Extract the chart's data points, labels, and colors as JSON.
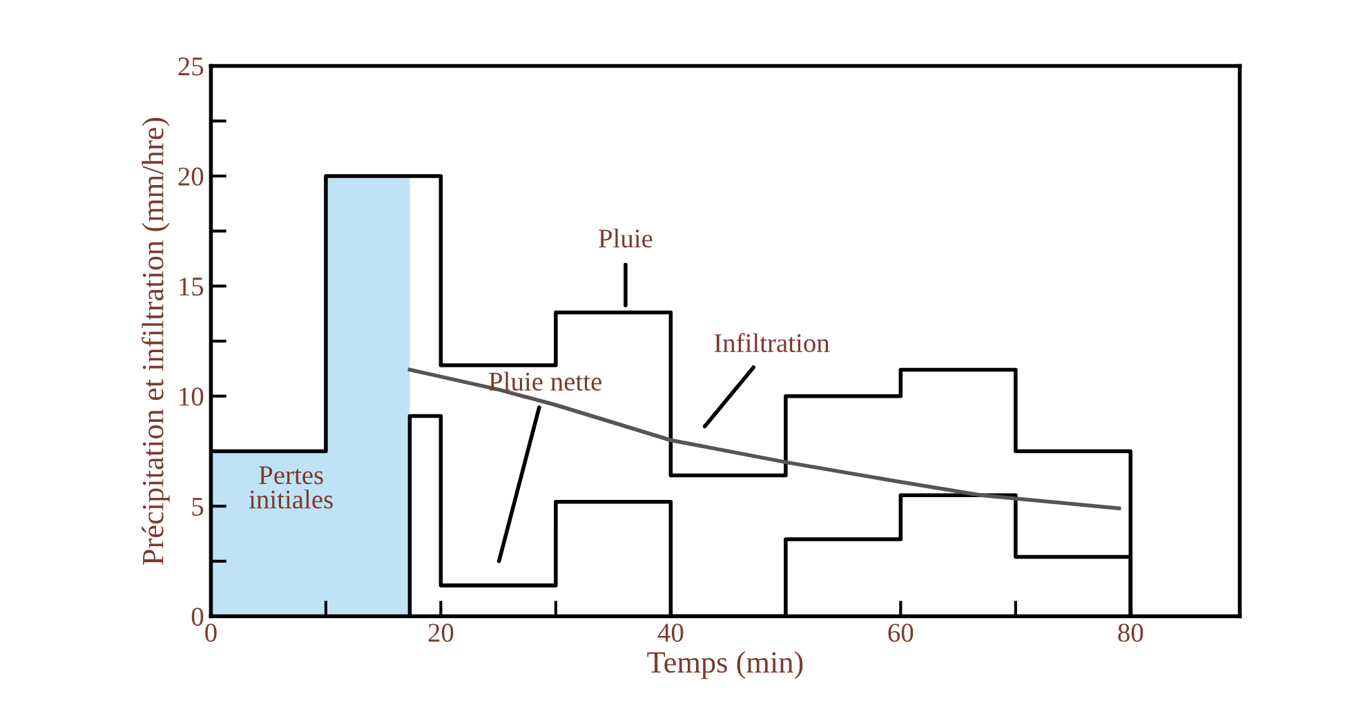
{
  "chart_data": {
    "type": "line",
    "xlabel": "Temps (min)",
    "ylabel": "Précipitation et infiltration (mm/hre)",
    "xlim": [
      0,
      89.5
    ],
    "ylim": [
      0,
      25
    ],
    "xticks": [
      0,
      {
        "value": 10,
        "label": null
      },
      20,
      {
        "value": 30,
        "label": null
      },
      40,
      {
        "value": 50,
        "label": null
      },
      60,
      {
        "value": 70,
        "label": null
      },
      80
    ],
    "yticks": [
      0,
      {
        "value": 2.5,
        "label": null
      },
      5,
      {
        "value": 7.5,
        "label": null
      },
      10,
      {
        "value": 12.5,
        "label": null
      },
      15,
      {
        "value": 17.5,
        "label": null
      },
      20,
      {
        "value": 22.5,
        "label": null
      },
      25
    ],
    "grid": false,
    "marker": "none",
    "line_style": "solid",
    "series": [
      {
        "type": "area",
        "color": "#bfe3f5",
        "x": [
          0,
          10,
          10,
          17.3
        ],
        "values": [
          7.5,
          7.5,
          20,
          20
        ]
      },
      {
        "color": "#000000",
        "x": [
          0,
          10,
          10,
          20,
          20,
          30,
          30,
          40,
          40,
          50,
          50,
          60,
          60,
          70,
          70,
          80,
          80
        ],
        "values": [
          7.5,
          7.5,
          20,
          20,
          11.4,
          11.4,
          13.8,
          13.8,
          6.4,
          6.4,
          10.0,
          10.0,
          11.2,
          11.2,
          7.5,
          7.5,
          0
        ]
      },
      {
        "color": "#000000",
        "x": [
          17.3,
          17.3,
          20,
          20,
          30,
          30,
          40,
          40,
          50,
          50,
          60,
          60,
          70,
          70,
          80,
          80
        ],
        "values": [
          0,
          9.1,
          9.1,
          1.4,
          1.4,
          5.2,
          5.2,
          0,
          0,
          3.5,
          3.5,
          5.5,
          5.5,
          2.7,
          2.7,
          0
        ]
      },
      {
        "color": "#555555",
        "x": [
          17.3,
          25,
          30,
          40,
          50,
          60,
          67,
          79
        ],
        "values": [
          11.2,
          10.3,
          9.6,
          8.0,
          7.0,
          6.1,
          5.5,
          4.9
        ]
      }
    ],
    "annotations": [
      "Pluie",
      "Pluie nette",
      "Infiltration",
      "Pertes\ninitiales"
    ]
  }
}
